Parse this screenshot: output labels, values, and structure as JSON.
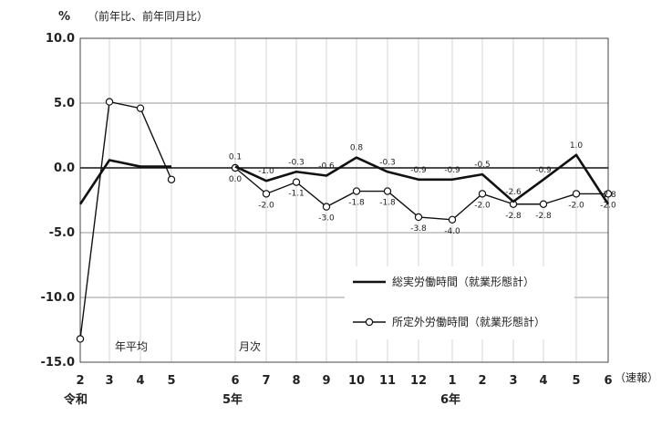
{
  "chart_data": {
    "type": "line",
    "unit_label": "%",
    "subtitle": "（前年比、前年同月比）",
    "ylim": [
      -15.0,
      10.0
    ],
    "yticks": [
      "10.0",
      "5.0",
      "0.0",
      "-5.0",
      "-10.0",
      "-15.0"
    ],
    "section_labels": {
      "annual": "年平均",
      "monthly": "月次"
    },
    "era_labels": {
      "reiwa": "令和",
      "r5": "5年",
      "r6": "6年",
      "preliminary": "（速報）"
    },
    "annual": {
      "categories": [
        "2",
        "3",
        "4",
        "5"
      ],
      "series": [
        {
          "name": "総実労働時間（就業形態計）",
          "values": [
            -2.8,
            0.6,
            0.1,
            0.1
          ]
        },
        {
          "name": "所定外労働時間（就業形態計）",
          "values": [
            -13.2,
            5.1,
            4.6,
            -0.9
          ]
        }
      ]
    },
    "monthly": {
      "categories": [
        "6",
        "7",
        "8",
        "9",
        "10",
        "11",
        "12",
        "1",
        "2",
        "3",
        "4",
        "5",
        "6"
      ],
      "series": [
        {
          "name": "総実労働時間（就業形態計）",
          "values": [
            0.1,
            -1.0,
            -0.3,
            -0.6,
            0.8,
            -0.3,
            -0.9,
            -0.9,
            -0.5,
            -2.6,
            -0.9,
            1.0,
            -2.8
          ],
          "labels": [
            "0.1",
            "-1.0",
            "-0.3",
            "-0.6",
            "0.8",
            "-0.3",
            "-0.9",
            "-0.9",
            "-0.5",
            "-2.6",
            "-0.9",
            "1.0",
            "-2.8"
          ]
        },
        {
          "name": "所定外労働時間（就業形態計）",
          "values": [
            0.0,
            -2.0,
            -1.1,
            -3.0,
            -1.8,
            -1.8,
            -3.8,
            -4.0,
            -2.0,
            -2.8,
            -2.8,
            -2.0,
            -2.0
          ],
          "labels": [
            "0.0",
            "-2.0",
            "-1.1",
            "-3.0",
            "-1.8",
            "-1.8",
            "-3.8",
            "-4.0",
            "-2.0",
            "-2.8",
            "-2.8",
            "-2.0",
            "-2.0"
          ]
        }
      ]
    },
    "legend": [
      {
        "name": "総実労働時間（就業形態計）",
        "style": "thick line"
      },
      {
        "name": "所定外労働時間（就業形態計）",
        "style": "thin line with open circles"
      }
    ],
    "grid": true,
    "legend_position": "center-right",
    "colors": {
      "line": "#111111",
      "grid": "#999999"
    }
  }
}
